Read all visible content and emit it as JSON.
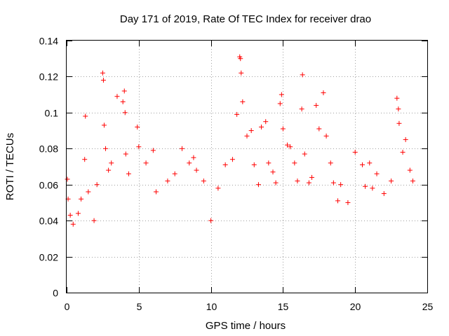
{
  "chart_data": {
    "type": "scatter",
    "title": "Day 171 of 2019, Rate Of TEC Index for receiver drao",
    "xlabel": "GPS time / hours",
    "ylabel": "ROTI / TECUs",
    "xlim": [
      0,
      25
    ],
    "ylim": [
      0,
      0.14
    ],
    "xticks": [
      0,
      5,
      10,
      15,
      20,
      25
    ],
    "xtick_labels": [
      "0",
      "5",
      "10",
      "15",
      "20",
      "25"
    ],
    "yticks": [
      0,
      0.02,
      0.04,
      0.06,
      0.08,
      0.1,
      0.12,
      0.14
    ],
    "ytick_labels": [
      "0",
      "0.02",
      "0.04",
      "0.06",
      "0.08",
      "0.1",
      "0.12",
      "0.14"
    ],
    "grid": true,
    "marker": "+",
    "color": "#ff0000",
    "series": [
      {
        "name": "ROTI",
        "x": [
          0.05,
          0.1,
          0.25,
          0.45,
          0.8,
          1.0,
          1.25,
          1.3,
          1.5,
          1.9,
          2.1,
          2.5,
          2.55,
          2.6,
          2.7,
          2.9,
          3.1,
          3.5,
          3.9,
          4.0,
          4.05,
          4.1,
          4.3,
          4.9,
          5.0,
          5.5,
          6.0,
          6.2,
          7.0,
          7.5,
          8.0,
          8.5,
          8.8,
          9.0,
          9.5,
          10.0,
          10.5,
          11.0,
          11.5,
          11.8,
          12.0,
          12.05,
          12.1,
          12.2,
          12.5,
          12.8,
          13.0,
          13.3,
          13.5,
          13.8,
          14.0,
          14.3,
          14.5,
          14.8,
          14.9,
          15.0,
          15.3,
          15.5,
          15.8,
          16.0,
          16.3,
          16.35,
          16.5,
          16.8,
          17.0,
          17.3,
          17.5,
          17.8,
          18.0,
          18.3,
          18.5,
          18.8,
          19.0,
          19.5,
          20.0,
          20.5,
          20.7,
          21.0,
          21.2,
          21.5,
          22.0,
          22.5,
          22.9,
          23.0,
          23.05,
          23.3,
          23.5,
          23.8,
          24.0
        ],
        "y": [
          0.063,
          0.052,
          0.043,
          0.038,
          0.044,
          0.052,
          0.074,
          0.098,
          0.056,
          0.04,
          0.06,
          0.122,
          0.118,
          0.093,
          0.08,
          0.068,
          0.072,
          0.109,
          0.106,
          0.112,
          0.1,
          0.077,
          0.066,
          0.092,
          0.081,
          0.072,
          0.079,
          0.056,
          0.062,
          0.066,
          0.08,
          0.072,
          0.075,
          0.068,
          0.062,
          0.04,
          0.058,
          0.071,
          0.074,
          0.099,
          0.131,
          0.13,
          0.122,
          0.106,
          0.087,
          0.09,
          0.071,
          0.06,
          0.092,
          0.095,
          0.072,
          0.067,
          0.061,
          0.105,
          0.11,
          0.091,
          0.082,
          0.081,
          0.072,
          0.062,
          0.102,
          0.121,
          0.077,
          0.061,
          0.064,
          0.104,
          0.091,
          0.111,
          0.087,
          0.072,
          0.061,
          0.051,
          0.06,
          0.05,
          0.078,
          0.071,
          0.059,
          0.072,
          0.058,
          0.066,
          0.055,
          0.062,
          0.108,
          0.102,
          0.094,
          0.078,
          0.085,
          0.068,
          0.062
        ]
      }
    ]
  }
}
